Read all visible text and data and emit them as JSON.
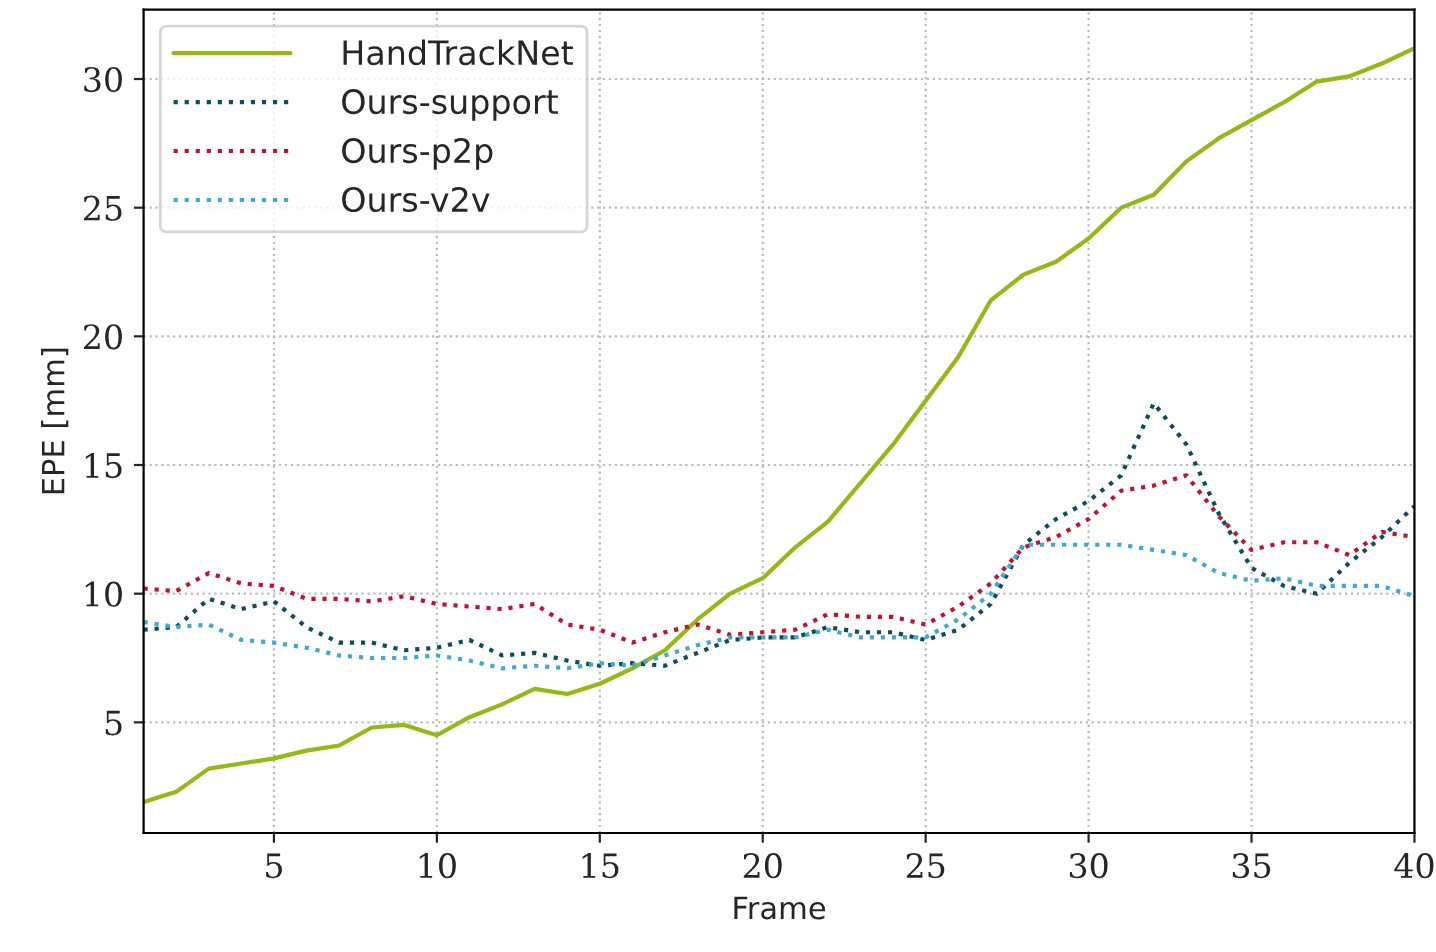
{
  "chart_data": {
    "type": "line",
    "xlabel": "Frame",
    "ylabel": "EPE [mm]",
    "xlim": [
      1,
      40
    ],
    "ylim": [
      0.7,
      32.7
    ],
    "xticks": [
      5,
      10,
      15,
      20,
      25,
      30,
      35,
      40
    ],
    "yticks": [
      5,
      10,
      15,
      20,
      25,
      30
    ],
    "grid": true,
    "legend": "top left",
    "x": [
      1,
      2,
      3,
      4,
      5,
      6,
      7,
      8,
      9,
      10,
      11,
      12,
      13,
      14,
      15,
      16,
      17,
      18,
      19,
      20,
      21,
      22,
      23,
      24,
      25,
      26,
      27,
      28,
      29,
      30,
      31,
      32,
      33,
      34,
      35,
      36,
      37,
      38,
      39,
      40
    ],
    "series": [
      {
        "name": "HandTrackNet",
        "color": "#94b814",
        "line_style": "solid",
        "values": [
          1.9,
          2.3,
          3.2,
          3.4,
          3.6,
          3.9,
          4.1,
          4.8,
          4.9,
          4.5,
          5.2,
          5.7,
          6.3,
          6.1,
          6.5,
          7.1,
          7.8,
          9.0,
          10.0,
          10.6,
          11.8,
          12.8,
          14.3,
          15.8,
          17.5,
          19.2,
          21.4,
          22.4,
          22.9,
          23.8,
          25.0,
          25.5,
          26.8,
          27.7,
          28.4,
          29.1,
          29.9,
          30.1,
          30.6,
          31.2
        ]
      },
      {
        "name": "Ours-support",
        "color": "#0b4f5e",
        "line_style": "dotted",
        "values": [
          8.6,
          8.7,
          9.8,
          9.4,
          9.7,
          8.7,
          8.1,
          8.1,
          7.8,
          7.9,
          8.2,
          7.6,
          7.7,
          7.4,
          7.2,
          7.3,
          7.2,
          7.7,
          8.2,
          8.3,
          8.3,
          8.7,
          8.5,
          8.5,
          8.2,
          8.6,
          9.6,
          11.9,
          12.9,
          13.6,
          14.6,
          17.4,
          15.8,
          13.1,
          11.0,
          10.3,
          10.0,
          11.2,
          12.2,
          13.4
        ]
      },
      {
        "name": "Ours-p2p",
        "color": "#c8102e",
        "line_style": "dotted",
        "values": [
          10.2,
          10.1,
          10.8,
          10.4,
          10.3,
          9.8,
          9.8,
          9.7,
          9.9,
          9.6,
          9.5,
          9.4,
          9.6,
          8.8,
          8.6,
          8.1,
          8.5,
          8.8,
          8.4,
          8.5,
          8.6,
          9.2,
          9.1,
          9.1,
          8.8,
          9.5,
          10.4,
          11.8,
          12.2,
          12.9,
          14.0,
          14.2,
          14.6,
          13.0,
          11.7,
          12.0,
          12.0,
          11.5,
          12.4,
          12.2
        ]
      },
      {
        "name": "Ours-v2v",
        "color": "#3fa9d6",
        "line_style": "dotted",
        "values": [
          8.9,
          8.7,
          8.8,
          8.2,
          8.1,
          7.9,
          7.6,
          7.5,
          7.5,
          7.6,
          7.4,
          7.1,
          7.2,
          7.1,
          7.3,
          7.2,
          7.6,
          8.0,
          8.3,
          8.3,
          8.3,
          8.6,
          8.3,
          8.3,
          8.3,
          9.0,
          10.0,
          11.9,
          11.9,
          11.9,
          11.9,
          11.7,
          11.5,
          10.8,
          10.5,
          10.6,
          10.3,
          10.3,
          10.3,
          9.9
        ]
      }
    ]
  }
}
